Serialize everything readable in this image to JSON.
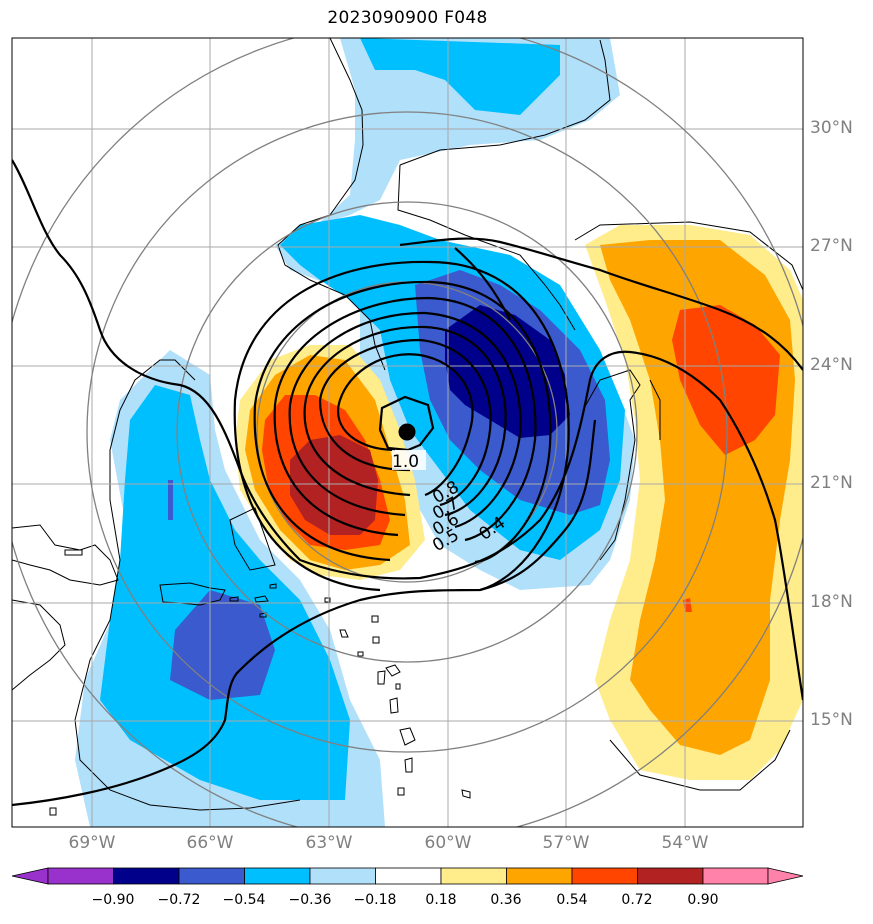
{
  "title": "2023090900 F048",
  "map": {
    "lat_labels": [
      "30°N",
      "27°N",
      "24°N",
      "21°N",
      "18°N",
      "15°N"
    ],
    "lon_labels": [
      "69°W",
      "66°W",
      "63°W",
      "60°W",
      "57°W",
      "54°W"
    ],
    "contour_labels": [
      "1.0",
      "0.8",
      "0.7",
      "0.6",
      "0.5",
      "0.4"
    ],
    "storm_center": {
      "lon": -61.0,
      "lat": 22.3
    },
    "gridlines": true
  },
  "colorbar": {
    "ticks": [
      "−0.90",
      "−0.72",
      "−0.54",
      "−0.36",
      "−0.18",
      "0.18",
      "0.36",
      "0.54",
      "0.72",
      "0.90"
    ],
    "colors": [
      "#9932cc",
      "#00008b",
      "#3a5acd",
      "#00bfff",
      "#b0e0fa",
      "#ffffff",
      "#ffec8b",
      "#ffa500",
      "#ff4500",
      "#b22222",
      "#ff82ab"
    ],
    "extend": "both"
  }
}
